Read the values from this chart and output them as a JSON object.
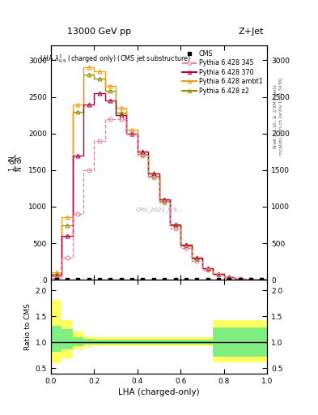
{
  "lha_bins": [
    0.0,
    0.05,
    0.1,
    0.15,
    0.2,
    0.25,
    0.3,
    0.35,
    0.4,
    0.45,
    0.5,
    0.55,
    0.6,
    0.65,
    0.7,
    0.75,
    0.8,
    0.85,
    0.9,
    0.95,
    1.0
  ],
  "p345_vals": [
    30,
    300,
    900,
    1500,
    1900,
    2200,
    2200,
    2000,
    1700,
    1400,
    1050,
    700,
    430,
    260,
    140,
    70,
    35,
    12,
    4,
    1
  ],
  "p370_vals": [
    60,
    600,
    1700,
    2400,
    2550,
    2450,
    2250,
    2000,
    1750,
    1450,
    1100,
    760,
    480,
    300,
    160,
    80,
    40,
    14,
    5,
    1
  ],
  "pambt1_vals": [
    100,
    850,
    2400,
    2900,
    2850,
    2650,
    2350,
    2050,
    1750,
    1450,
    1100,
    760,
    480,
    300,
    160,
    80,
    40,
    14,
    5,
    1
  ],
  "pz2_vals": [
    80,
    750,
    2300,
    2800,
    2750,
    2580,
    2280,
    2000,
    1720,
    1420,
    1080,
    750,
    470,
    290,
    155,
    78,
    38,
    13,
    4,
    1
  ],
  "color_345": "#e8829a",
  "color_370": "#b0003a",
  "color_ambt1": "#e8a020",
  "color_z2": "#909000",
  "ratio_green_lo": [
    0.82,
    0.87,
    0.93,
    0.95,
    0.96,
    0.96,
    0.96,
    0.96,
    0.96,
    0.96,
    0.96,
    0.96,
    0.96,
    0.96,
    0.96,
    0.72,
    0.72,
    0.72,
    0.72,
    0.72
  ],
  "ratio_green_hi": [
    1.32,
    1.25,
    1.1,
    1.07,
    1.05,
    1.05,
    1.05,
    1.05,
    1.05,
    1.05,
    1.05,
    1.05,
    1.05,
    1.05,
    1.05,
    1.28,
    1.28,
    1.28,
    1.28,
    1.28
  ],
  "ratio_yellow_lo": [
    0.6,
    0.7,
    0.86,
    0.91,
    0.93,
    0.93,
    0.93,
    0.93,
    0.93,
    0.93,
    0.93,
    0.93,
    0.93,
    0.93,
    0.93,
    0.62,
    0.62,
    0.62,
    0.62,
    0.62
  ],
  "ratio_yellow_hi": [
    1.82,
    1.42,
    1.2,
    1.12,
    1.09,
    1.09,
    1.09,
    1.09,
    1.09,
    1.09,
    1.09,
    1.09,
    1.09,
    1.09,
    1.09,
    1.42,
    1.42,
    1.42,
    1.42,
    1.42
  ],
  "ylim_main": [
    0,
    3200
  ],
  "ylim_ratio": [
    0.4,
    2.2
  ],
  "yticks_main": [
    0,
    500,
    1000,
    1500,
    2000,
    2500,
    3000
  ],
  "yticks_ratio": [
    0.5,
    1.0,
    1.5,
    2.0
  ],
  "title_left": "13000 GeV pp",
  "title_right": "Z+Jet",
  "xlabel": "LHA (charged-only)",
  "ylabel_ratio": "Ratio to CMS",
  "watermark": "CMS_2021_I19...",
  "bg_color": "#ffffff"
}
